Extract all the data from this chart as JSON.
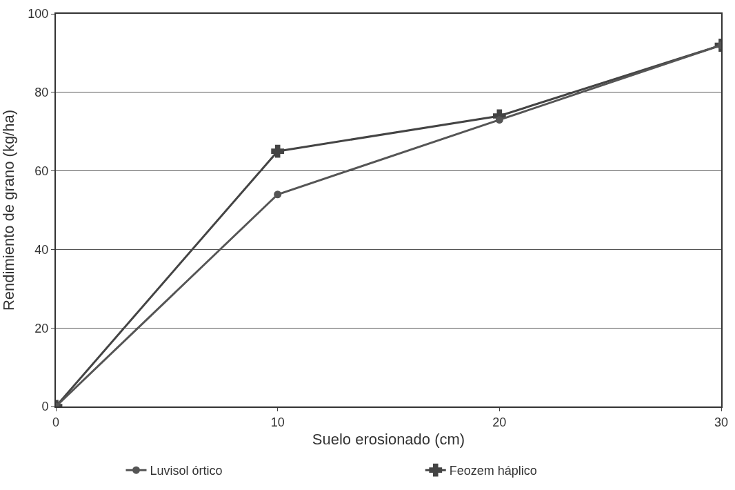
{
  "chart_data": {
    "type": "line",
    "xlabel": "Suelo erosionado (cm)",
    "ylabel": "Rendimiento de grano (kg/ha)",
    "x": [
      0,
      10,
      20,
      30
    ],
    "xlim": [
      0,
      30
    ],
    "xticks": [
      0,
      10,
      20,
      30
    ],
    "ylim": [
      0,
      100
    ],
    "yticks": [
      0,
      20,
      40,
      60,
      80,
      100
    ],
    "grid": "y",
    "legend": "bottom",
    "series": [
      {
        "name": "Luvisol órtico",
        "color": "#555555",
        "marker": "circle",
        "values": [
          0,
          54,
          73,
          92
        ]
      },
      {
        "name": "Feozem háplico",
        "color": "#444444",
        "marker": "cross",
        "values": [
          0,
          65,
          74,
          92
        ]
      }
    ]
  }
}
